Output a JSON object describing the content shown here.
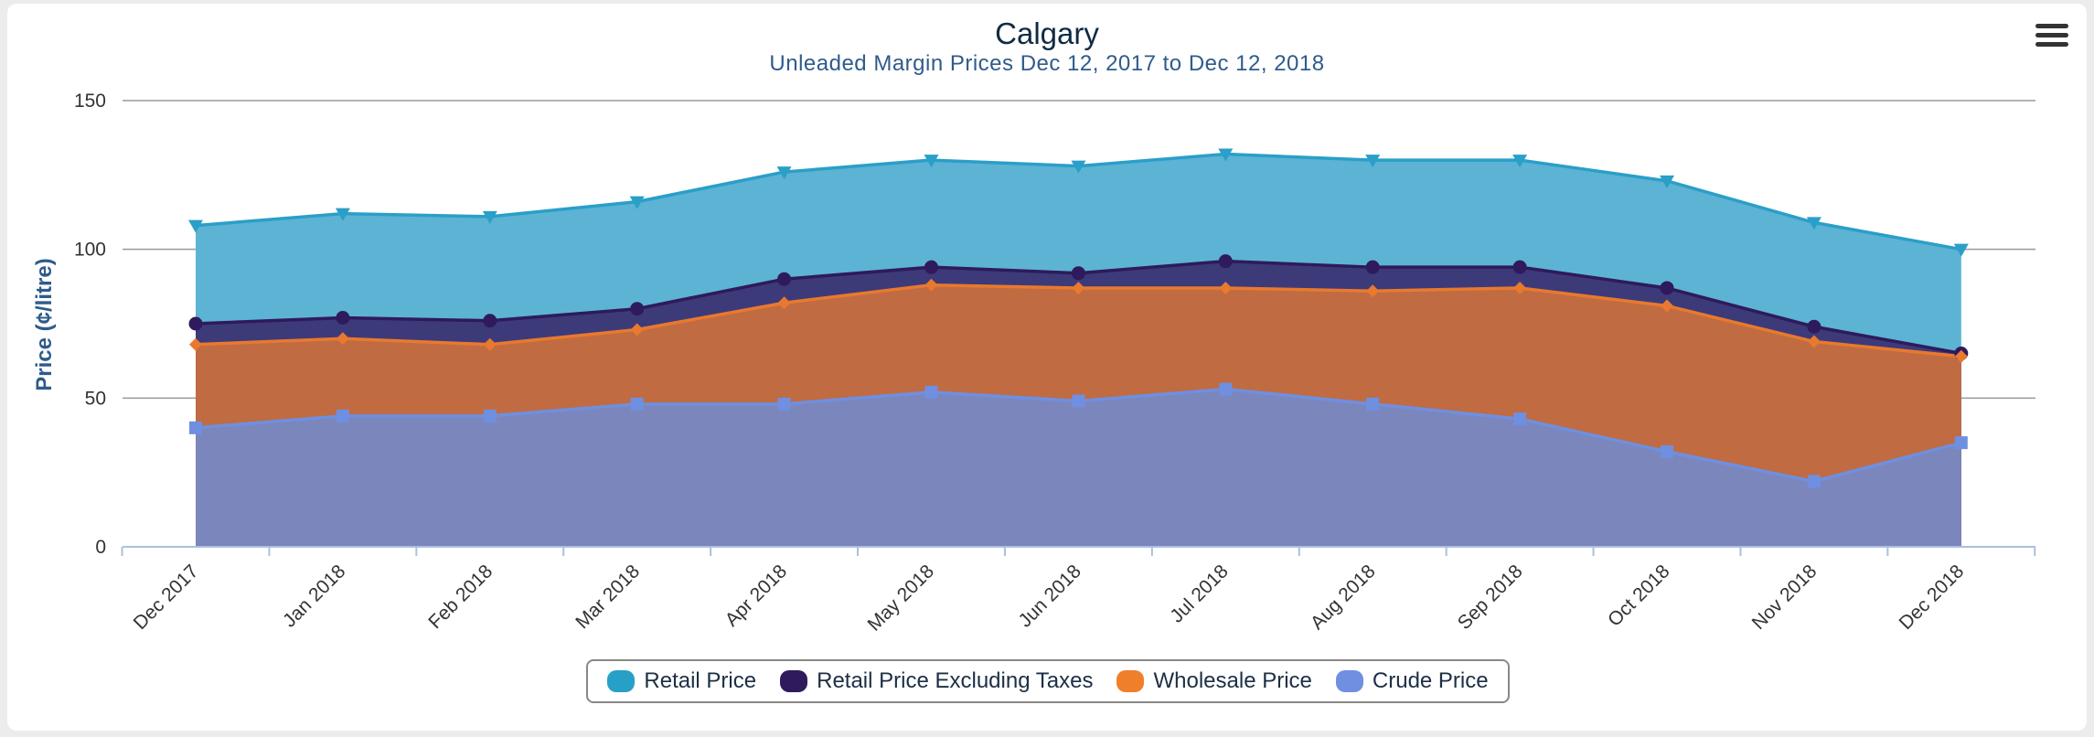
{
  "chart_data": {
    "type": "area",
    "title": "Calgary",
    "subtitle": "Unleaded Margin Prices Dec 12, 2017 to Dec 12, 2018",
    "ylabel": "Price (¢/litre)",
    "xlabel": "",
    "ylim": [
      0,
      150
    ],
    "yticks": [
      0,
      50,
      100,
      150
    ],
    "grid": true,
    "legend_position": "bottom-center",
    "categories": [
      "Dec 2017",
      "Jan 2018",
      "Feb 2018",
      "Mar 2018",
      "Apr 2018",
      "May 2018",
      "Jun 2018",
      "Jul 2018",
      "Aug 2018",
      "Sep 2018",
      "Oct 2018",
      "Nov 2018",
      "Dec 2018"
    ],
    "series": [
      {
        "name": "Retail Price",
        "color": "#2a9fc8",
        "fill": "#5db3d4",
        "marker": "triangle-down",
        "values": [
          108,
          112,
          111,
          116,
          126,
          130,
          128,
          132,
          130,
          130,
          123,
          109,
          100
        ]
      },
      {
        "name": "Retail Price Excluding Taxes",
        "color": "#2e1a5c",
        "fill": "#3d3a7a",
        "marker": "circle",
        "values": [
          75,
          77,
          76,
          80,
          90,
          94,
          92,
          96,
          94,
          94,
          87,
          74,
          65
        ]
      },
      {
        "name": "Wholesale Price",
        "color": "#e8792e",
        "fill": "#c06b42",
        "marker": "diamond",
        "values": [
          68,
          70,
          68,
          73,
          82,
          88,
          87,
          87,
          86,
          87,
          81,
          69,
          64
        ]
      },
      {
        "name": "Crude Price",
        "color": "#6f8fe0",
        "fill": "#7b86bd",
        "marker": "square",
        "values": [
          40,
          44,
          44,
          48,
          48,
          52,
          49,
          53,
          48,
          43,
          32,
          22,
          35
        ]
      }
    ]
  },
  "legend": {
    "items": [
      {
        "label": "Retail Price",
        "color": "#27a0c8"
      },
      {
        "label": "Retail Price Excluding Taxes",
        "color": "#2e1a5c"
      },
      {
        "label": "Wholesale Price",
        "color": "#f07f2c"
      },
      {
        "label": "Crude Price",
        "color": "#6f8fe0"
      }
    ]
  },
  "menu": {
    "icon": "hamburger-menu-icon"
  }
}
